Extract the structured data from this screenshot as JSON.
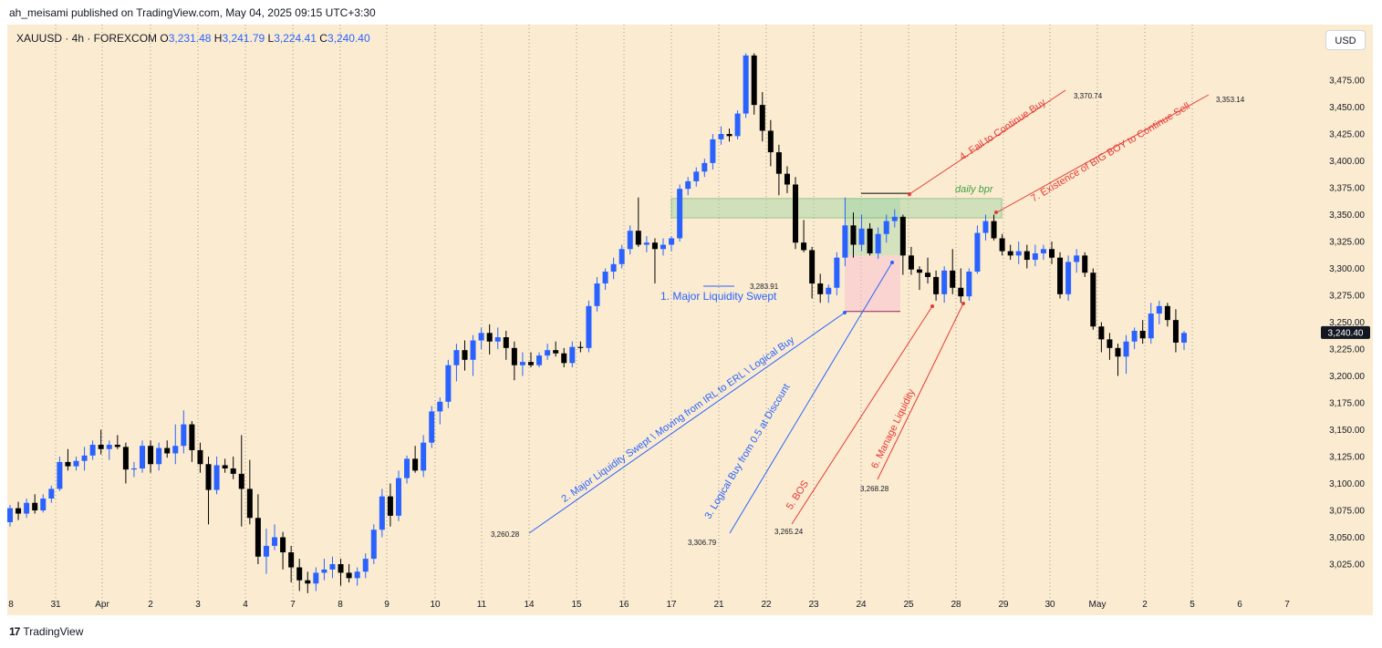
{
  "header": {
    "published": "ah_meisami published on TradingView.com, May 04, 2025 09:15 UTC+3:30"
  },
  "legend": {
    "symbol": "XAUUSD · 4h · FOREXCOM",
    "o_label": "O",
    "o": "3,231.48",
    "h_label": "H",
    "h": "3,241.79",
    "l_label": "L",
    "l": "3,224.41",
    "c_label": "C",
    "c": "3,240.40"
  },
  "currency_button": "USD",
  "footer": {
    "logo": "17",
    "brand": "TradingView"
  },
  "colors": {
    "up": "#2962ff",
    "down": "#000000",
    "background": "#fbecd1",
    "annotation_blue": "#2962ff",
    "annotation_red": "#e53935",
    "zone_green": "#a5d6a7",
    "zone_red": "#f8bbd0"
  },
  "chart_data": {
    "type": "candlestick",
    "symbol": "XAUUSD",
    "timeframe": "4h",
    "ylim": [
      3000,
      3510
    ],
    "y_ticks": [
      3025,
      3050,
      3075,
      3100,
      3125,
      3150,
      3175,
      3200,
      3225,
      3250,
      3275,
      3300,
      3325,
      3350,
      3375,
      3400,
      3425,
      3450,
      3475
    ],
    "y_tick_labels": [
      "3,025.00",
      "3,050.00",
      "3,075.00",
      "3,100.00",
      "3,125.00",
      "3,150.00",
      "3,175.00",
      "3,200.00",
      "3,225.00",
      "3,250.00",
      "3,275.00",
      "3,300.00",
      "3,325.00",
      "3,350.00",
      "3,375.00",
      "3,400.00",
      "3,425.00",
      "3,450.00",
      "3,475.00"
    ],
    "x_tick_labels": [
      "8",
      "31",
      "Apr",
      "2",
      "3",
      "4",
      "7",
      "8",
      "9",
      "10",
      "11",
      "14",
      "15",
      "16",
      "17",
      "21",
      "22",
      "23",
      "24",
      "25",
      "28",
      "29",
      "30",
      "May",
      "2",
      "5",
      "6",
      "7"
    ],
    "last_price": 3240.4,
    "last_price_label": "3,240.40",
    "candles": [
      [
        3064,
        3080,
        3060,
        3077
      ],
      [
        3077,
        3083,
        3066,
        3072
      ],
      [
        3072,
        3086,
        3068,
        3082
      ],
      [
        3082,
        3090,
        3072,
        3075
      ],
      [
        3075,
        3090,
        3073,
        3086
      ],
      [
        3086,
        3098,
        3082,
        3095
      ],
      [
        3095,
        3125,
        3093,
        3120
      ],
      [
        3120,
        3132,
        3112,
        3116
      ],
      [
        3116,
        3125,
        3112,
        3121
      ],
      [
        3121,
        3134,
        3112,
        3126
      ],
      [
        3126,
        3140,
        3122,
        3136
      ],
      [
        3136,
        3150,
        3127,
        3132
      ],
      [
        3132,
        3140,
        3122,
        3136
      ],
      [
        3136,
        3145,
        3132,
        3134
      ],
      [
        3134,
        3138,
        3100,
        3113
      ],
      [
        3113,
        3120,
        3106,
        3114
      ],
      [
        3114,
        3140,
        3110,
        3135
      ],
      [
        3135,
        3140,
        3110,
        3118
      ],
      [
        3118,
        3138,
        3112,
        3133
      ],
      [
        3133,
        3140,
        3124,
        3128
      ],
      [
        3128,
        3155,
        3118,
        3135
      ],
      [
        3135,
        3168,
        3128,
        3155
      ],
      [
        3155,
        3158,
        3120,
        3131
      ],
      [
        3131,
        3138,
        3110,
        3118
      ],
      [
        3118,
        3125,
        3062,
        3094
      ],
      [
        3094,
        3125,
        3090,
        3117
      ],
      [
        3117,
        3123,
        3110,
        3114
      ],
      [
        3114,
        3125,
        3104,
        3109
      ],
      [
        3109,
        3145,
        3060,
        3095
      ],
      [
        3095,
        3122,
        3062,
        3068
      ],
      [
        3068,
        3090,
        3025,
        3032
      ],
      [
        3032,
        3058,
        3016,
        3042
      ],
      [
        3042,
        3062,
        3038,
        3050
      ],
      [
        3050,
        3055,
        3020,
        3036
      ],
      [
        3036,
        3042,
        3008,
        3022
      ],
      [
        3022,
        3030,
        3000,
        3010
      ],
      [
        3010,
        3018,
        2998,
        3007
      ],
      [
        3007,
        3022,
        3000,
        3017
      ],
      [
        3017,
        3030,
        3010,
        3020
      ],
      [
        3020,
        3032,
        3012,
        3025
      ],
      [
        3025,
        3030,
        3005,
        3017
      ],
      [
        3017,
        3025,
        3008,
        3012
      ],
      [
        3012,
        3022,
        3005,
        3018
      ],
      [
        3018,
        3035,
        3012,
        3030
      ],
      [
        3030,
        3062,
        3025,
        3057
      ],
      [
        3057,
        3095,
        3050,
        3088
      ],
      [
        3088,
        3100,
        3060,
        3070
      ],
      [
        3070,
        3112,
        3065,
        3105
      ],
      [
        3105,
        3126,
        3100,
        3123
      ],
      [
        3123,
        3135,
        3110,
        3112
      ],
      [
        3112,
        3145,
        3106,
        3138
      ],
      [
        3138,
        3172,
        3133,
        3167
      ],
      [
        3167,
        3180,
        3155,
        3176
      ],
      [
        3176,
        3215,
        3170,
        3210
      ],
      [
        3210,
        3230,
        3195,
        3224
      ],
      [
        3224,
        3233,
        3205,
        3215
      ],
      [
        3215,
        3238,
        3200,
        3233
      ],
      [
        3233,
        3245,
        3225,
        3240
      ],
      [
        3240,
        3248,
        3220,
        3232
      ],
      [
        3232,
        3245,
        3225,
        3236
      ],
      [
        3236,
        3242,
        3215,
        3226
      ],
      [
        3226,
        3232,
        3196,
        3210
      ],
      [
        3210,
        3222,
        3200,
        3213
      ],
      [
        3213,
        3222,
        3208,
        3210
      ],
      [
        3210,
        3222,
        3208,
        3219
      ],
      [
        3219,
        3230,
        3215,
        3224
      ],
      [
        3224,
        3232,
        3218,
        3221
      ],
      [
        3221,
        3226,
        3208,
        3212
      ],
      [
        3212,
        3232,
        3208,
        3227
      ],
      [
        3227,
        3232,
        3222,
        3226
      ],
      [
        3226,
        3270,
        3222,
        3265
      ],
      [
        3265,
        3292,
        3260,
        3286
      ],
      [
        3286,
        3300,
        3280,
        3297
      ],
      [
        3297,
        3310,
        3290,
        3304
      ],
      [
        3304,
        3322,
        3300,
        3318
      ],
      [
        3318,
        3340,
        3313,
        3335
      ],
      [
        3335,
        3366,
        3320,
        3322
      ],
      [
        3322,
        3330,
        3315,
        3324
      ],
      [
        3324,
        3328,
        3286,
        3318
      ],
      [
        3318,
        3328,
        3312,
        3322
      ],
      [
        3322,
        3330,
        3316,
        3328
      ],
      [
        3328,
        3378,
        3325,
        3374
      ],
      [
        3374,
        3385,
        3368,
        3381
      ],
      [
        3381,
        3394,
        3376,
        3390
      ],
      [
        3390,
        3402,
        3385,
        3398
      ],
      [
        3398,
        3425,
        3392,
        3420
      ],
      [
        3420,
        3432,
        3415,
        3425
      ],
      [
        3425,
        3430,
        3418,
        3423
      ],
      [
        3423,
        3447,
        3420,
        3444
      ],
      [
        3444,
        3500,
        3440,
        3498
      ],
      [
        3498,
        3500,
        3443,
        3452
      ],
      [
        3452,
        3464,
        3418,
        3428
      ],
      [
        3428,
        3438,
        3395,
        3408
      ],
      [
        3408,
        3415,
        3368,
        3388
      ],
      [
        3388,
        3395,
        3370,
        3378
      ],
      [
        3378,
        3385,
        3318,
        3324
      ],
      [
        3324,
        3345,
        3315,
        3317
      ],
      [
        3317,
        3320,
        3272,
        3286
      ],
      [
        3286,
        3295,
        3268,
        3276
      ],
      [
        3276,
        3285,
        3268,
        3282
      ],
      [
        3282,
        3315,
        3275,
        3310
      ],
      [
        3310,
        3366,
        3302,
        3340
      ],
      [
        3340,
        3352,
        3310,
        3322
      ],
      [
        3322,
        3350,
        3316,
        3337
      ],
      [
        3337,
        3342,
        3312,
        3314
      ],
      [
        3314,
        3338,
        3309,
        3332
      ],
      [
        3332,
        3350,
        3324,
        3344
      ],
      [
        3344,
        3355,
        3338,
        3348
      ],
      [
        3348,
        3350,
        3294,
        3312
      ],
      [
        3312,
        3320,
        3294,
        3299
      ],
      [
        3299,
        3302,
        3280,
        3296
      ],
      [
        3296,
        3310,
        3286,
        3292
      ],
      [
        3292,
        3298,
        3270,
        3276
      ],
      [
        3276,
        3302,
        3268,
        3298
      ],
      [
        3298,
        3318,
        3276,
        3282
      ],
      [
        3282,
        3300,
        3268,
        3274
      ],
      [
        3274,
        3300,
        3270,
        3297
      ],
      [
        3297,
        3340,
        3295,
        3333
      ],
      [
        3333,
        3350,
        3326,
        3344
      ],
      [
        3344,
        3350,
        3326,
        3328
      ],
      [
        3328,
        3332,
        3312,
        3316
      ],
      [
        3316,
        3322,
        3308,
        3312
      ],
      [
        3312,
        3325,
        3304,
        3316
      ],
      [
        3316,
        3322,
        3300,
        3308
      ],
      [
        3308,
        3322,
        3302,
        3314
      ],
      [
        3314,
        3322,
        3308,
        3318
      ],
      [
        3318,
        3325,
        3304,
        3310
      ],
      [
        3310,
        3315,
        3272,
        3276
      ],
      [
        3276,
        3312,
        3270,
        3306
      ],
      [
        3306,
        3318,
        3296,
        3312
      ],
      [
        3312,
        3315,
        3292,
        3296
      ],
      [
        3296,
        3300,
        3243,
        3246
      ],
      [
        3246,
        3250,
        3222,
        3234
      ],
      [
        3234,
        3240,
        3215,
        3226
      ],
      [
        3226,
        3230,
        3200,
        3218
      ],
      [
        3218,
        3238,
        3202,
        3232
      ],
      [
        3232,
        3245,
        3225,
        3242
      ],
      [
        3242,
        3252,
        3230,
        3235
      ],
      [
        3235,
        3268,
        3230,
        3258
      ],
      [
        3258,
        3270,
        3248,
        3265
      ],
      [
        3265,
        3268,
        3246,
        3252
      ],
      [
        3252,
        3262,
        3222,
        3231
      ],
      [
        3231,
        3242,
        3224,
        3240
      ]
    ],
    "annotations": [
      {
        "text": "1. Major Liquidity Swept",
        "color": "blue",
        "value_label": "3,283.91"
      },
      {
        "text": "2. Major Liquidity Swept \\ Moving from IRL to ERL \\ Logical Buy",
        "color": "blue",
        "value_label": "3,260.28"
      },
      {
        "text": "3. Logical Buy from 0.5 at Discount",
        "color": "blue",
        "value_label": "3,306.79"
      },
      {
        "text": "4. Fail to Continue Buy",
        "color": "red",
        "value_label": "3,370.74"
      },
      {
        "text": "5. BOS",
        "color": "red",
        "value_label": "3,265.24"
      },
      {
        "text": "6. Manage Liquidity",
        "color": "red",
        "value_label": "3,268.28"
      },
      {
        "text": "7. Existence of BIG BOY to Continue Sell",
        "color": "red",
        "value_label": "3,353.14"
      },
      {
        "text": "daily bpr",
        "color": "green"
      }
    ],
    "zones": [
      {
        "name": "daily-bpr",
        "low": 3347,
        "high": 3365
      },
      {
        "name": "green-box",
        "low": 3312,
        "high": 3365
      },
      {
        "name": "red-box",
        "low": 3260,
        "high": 3312
      }
    ]
  }
}
